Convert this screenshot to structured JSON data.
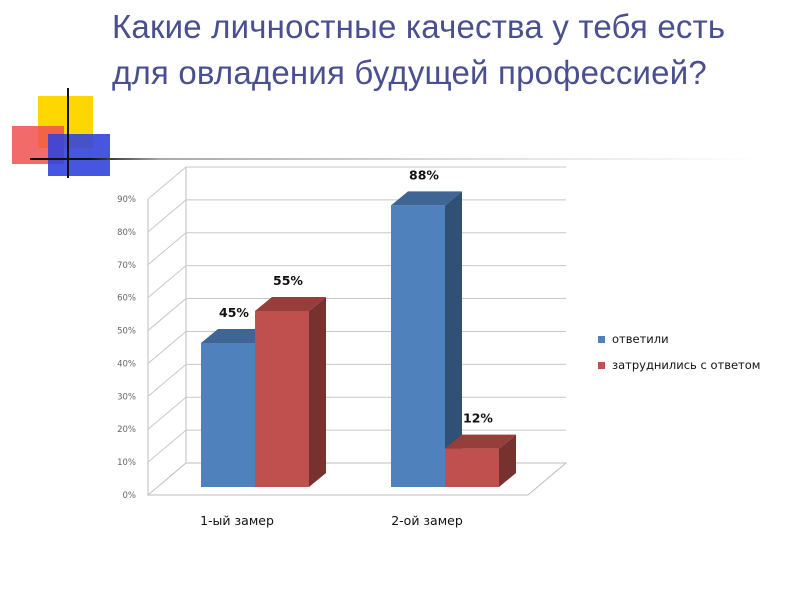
{
  "slide": {
    "title": "Какие личностные качества у тебя есть для овладения будущей профессией?"
  },
  "colors": {
    "title": "#4a4f8f",
    "series_1": "#4f81bd",
    "series_2": "#c0504d"
  },
  "chart_data": {
    "type": "bar",
    "categories": [
      "1-ый замер",
      "2-ой замер"
    ],
    "series": [
      {
        "name": "ответили",
        "values": [
          45,
          88
        ],
        "labels": [
          "45%",
          "88%"
        ]
      },
      {
        "name": "затруднились с ответом",
        "values": [
          55,
          12
        ],
        "labels": [
          "55%",
          "12%"
        ]
      }
    ],
    "ylim": [
      0,
      90
    ],
    "yticks": [
      "0%",
      "10%",
      "20%",
      "30%",
      "40%",
      "50%",
      "60%",
      "70%",
      "80%",
      "90%"
    ],
    "grid": true,
    "legend": "right",
    "style": "3d"
  }
}
